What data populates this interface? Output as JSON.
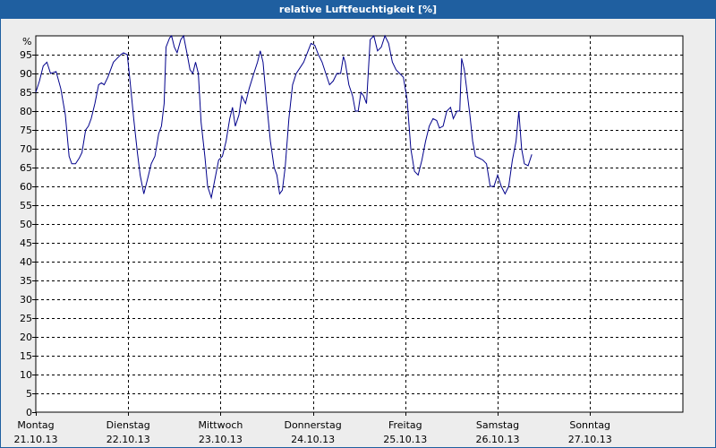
{
  "window": {
    "title": "relative Luftfeuchtigkeit [%]"
  },
  "chart_data": {
    "type": "line",
    "title": "relative Luftfeuchtigkeit [%]",
    "y_unit_label": "%",
    "ylim": [
      0,
      100
    ],
    "y_ticks": [
      0,
      5,
      10,
      15,
      20,
      25,
      30,
      35,
      40,
      45,
      50,
      55,
      60,
      65,
      70,
      75,
      80,
      85,
      90,
      95
    ],
    "xlim_days": [
      0,
      7
    ],
    "grid": true,
    "x_day_labels": [
      {
        "day": "Montag",
        "date": "21.10.13"
      },
      {
        "day": "Dienstag",
        "date": "22.10.13"
      },
      {
        "day": "Mittwoch",
        "date": "23.10.13"
      },
      {
        "day": "Donnerstag",
        "date": "24.10.13"
      },
      {
        "day": "Freitag",
        "date": "25.10.13"
      },
      {
        "day": "Samstag",
        "date": "26.10.13"
      },
      {
        "day": "Sonntag",
        "date": "27.10.13"
      }
    ],
    "series": [
      {
        "color": "#00008b",
        "points": [
          [
            0.0,
            85
          ],
          [
            0.04,
            88
          ],
          [
            0.08,
            92
          ],
          [
            0.12,
            93
          ],
          [
            0.16,
            90
          ],
          [
            0.22,
            90.5
          ],
          [
            0.27,
            86
          ],
          [
            0.32,
            79
          ],
          [
            0.36,
            68
          ],
          [
            0.39,
            66
          ],
          [
            0.43,
            66
          ],
          [
            0.47,
            67.5
          ],
          [
            0.5,
            69
          ],
          [
            0.54,
            75
          ],
          [
            0.57,
            76
          ],
          [
            0.6,
            78
          ],
          [
            0.64,
            82
          ],
          [
            0.68,
            87
          ],
          [
            0.71,
            87.5
          ],
          [
            0.74,
            87
          ],
          [
            0.78,
            89
          ],
          [
            0.81,
            91
          ],
          [
            0.84,
            93
          ],
          [
            0.88,
            94
          ],
          [
            0.92,
            95
          ],
          [
            0.95,
            95.5
          ],
          [
            0.99,
            95
          ],
          [
            1.02,
            88
          ],
          [
            1.06,
            78
          ],
          [
            1.1,
            69
          ],
          [
            1.13,
            63
          ],
          [
            1.17,
            58
          ],
          [
            1.21,
            62
          ],
          [
            1.25,
            66
          ],
          [
            1.29,
            68
          ],
          [
            1.33,
            74
          ],
          [
            1.36,
            76
          ],
          [
            1.39,
            82
          ],
          [
            1.41,
            97
          ],
          [
            1.45,
            99.5
          ],
          [
            1.47,
            100
          ],
          [
            1.5,
            97
          ],
          [
            1.53,
            95.5
          ],
          [
            1.57,
            99
          ],
          [
            1.6,
            100
          ],
          [
            1.64,
            95
          ],
          [
            1.67,
            91
          ],
          [
            1.7,
            90
          ],
          [
            1.73,
            93
          ],
          [
            1.76,
            90
          ],
          [
            1.79,
            77
          ],
          [
            1.83,
            68
          ],
          [
            1.86,
            60
          ],
          [
            1.9,
            57
          ],
          [
            1.94,
            62
          ],
          [
            1.98,
            67
          ],
          [
            2.02,
            68
          ],
          [
            2.06,
            72
          ],
          [
            2.1,
            78
          ],
          [
            2.13,
            81
          ],
          [
            2.16,
            76
          ],
          [
            2.2,
            79
          ],
          [
            2.23,
            84
          ],
          [
            2.27,
            82
          ],
          [
            2.31,
            86
          ],
          [
            2.36,
            90
          ],
          [
            2.4,
            93
          ],
          [
            2.43,
            96
          ],
          [
            2.46,
            93
          ],
          [
            2.5,
            82
          ],
          [
            2.54,
            72
          ],
          [
            2.58,
            65
          ],
          [
            2.61,
            63
          ],
          [
            2.64,
            58
          ],
          [
            2.67,
            59
          ],
          [
            2.7,
            65
          ],
          [
            2.74,
            78
          ],
          [
            2.78,
            87
          ],
          [
            2.82,
            90
          ],
          [
            2.86,
            91.5
          ],
          [
            2.9,
            93
          ],
          [
            2.94,
            95.5
          ],
          [
            2.98,
            98
          ],
          [
            3.02,
            97.5
          ],
          [
            3.06,
            95
          ],
          [
            3.1,
            93
          ],
          [
            3.14,
            90
          ],
          [
            3.18,
            87
          ],
          [
            3.22,
            88
          ],
          [
            3.26,
            90
          ],
          [
            3.3,
            90
          ],
          [
            3.33,
            94.5
          ],
          [
            3.35,
            93
          ],
          [
            3.39,
            87
          ],
          [
            3.43,
            84
          ],
          [
            3.46,
            80
          ],
          [
            3.49,
            80
          ],
          [
            3.52,
            85
          ],
          [
            3.55,
            84
          ],
          [
            3.58,
            82
          ],
          [
            3.62,
            99
          ],
          [
            3.66,
            100
          ],
          [
            3.7,
            96
          ],
          [
            3.74,
            97
          ],
          [
            3.78,
            100
          ],
          [
            3.82,
            98
          ],
          [
            3.86,
            93
          ],
          [
            3.9,
            91
          ],
          [
            3.94,
            90
          ],
          [
            3.98,
            89
          ],
          [
            4.02,
            83
          ],
          [
            4.06,
            70
          ],
          [
            4.1,
            64
          ],
          [
            4.14,
            63
          ],
          [
            4.18,
            67
          ],
          [
            4.22,
            72
          ],
          [
            4.26,
            76
          ],
          [
            4.3,
            78
          ],
          [
            4.34,
            77.5
          ],
          [
            4.37,
            75.5
          ],
          [
            4.41,
            76
          ],
          [
            4.45,
            80
          ],
          [
            4.49,
            81
          ],
          [
            4.52,
            78
          ],
          [
            4.56,
            80
          ],
          [
            4.59,
            80
          ],
          [
            4.61,
            94
          ],
          [
            4.64,
            91
          ],
          [
            4.67,
            85
          ],
          [
            4.7,
            79
          ],
          [
            4.73,
            72
          ],
          [
            4.76,
            68
          ],
          [
            4.8,
            67.5
          ],
          [
            4.84,
            67
          ],
          [
            4.88,
            66
          ],
          [
            4.92,
            60
          ],
          [
            4.96,
            60
          ],
          [
            5.0,
            63
          ],
          [
            5.04,
            60
          ],
          [
            5.08,
            58
          ],
          [
            5.12,
            60
          ],
          [
            5.16,
            67
          ],
          [
            5.2,
            72
          ],
          [
            5.23,
            80
          ],
          [
            5.26,
            70
          ],
          [
            5.29,
            66
          ],
          [
            5.33,
            65.5
          ],
          [
            5.37,
            68.5
          ]
        ]
      }
    ]
  }
}
